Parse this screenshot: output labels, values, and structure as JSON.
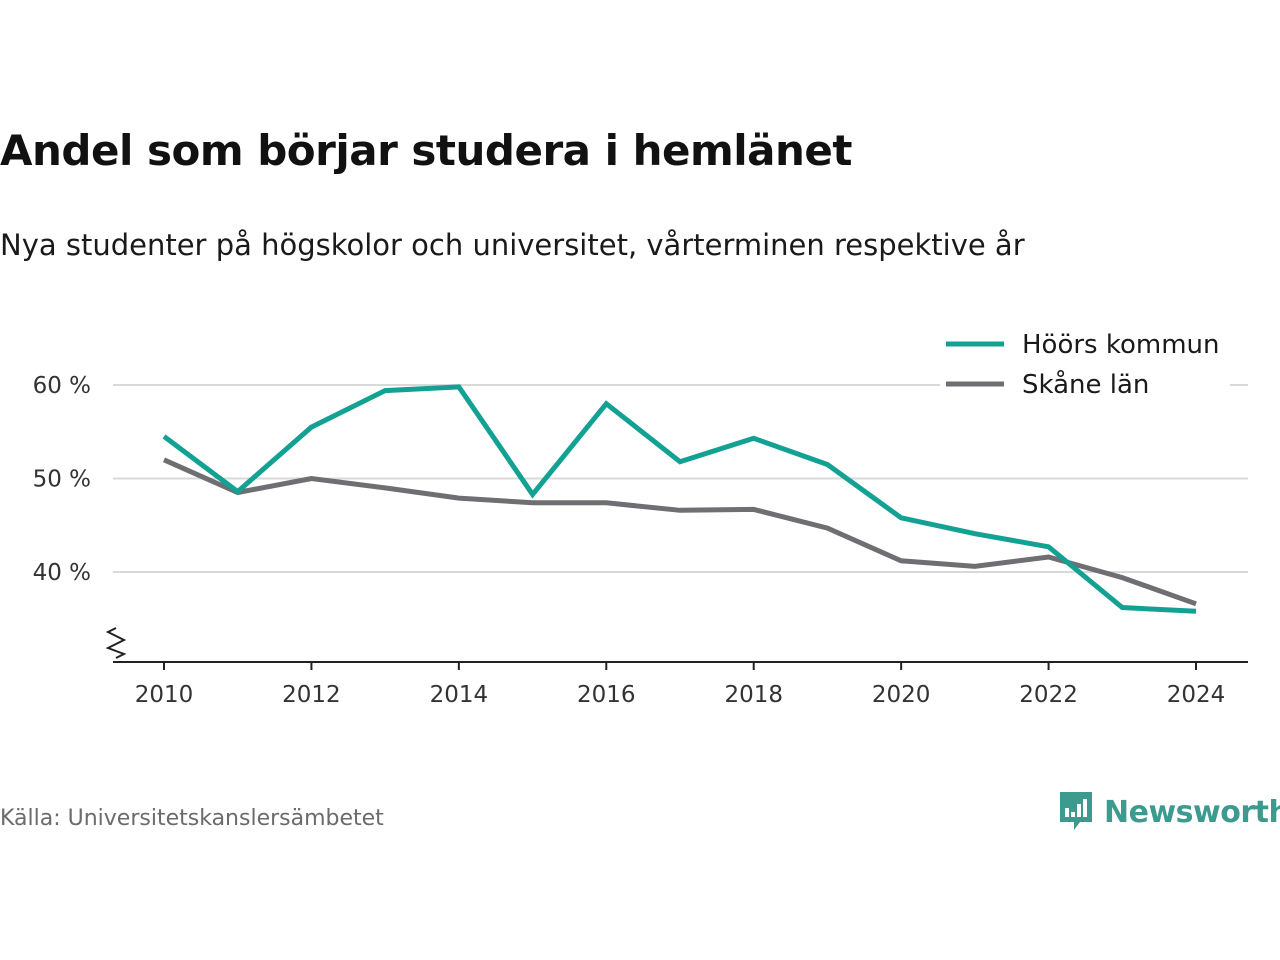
{
  "header": {
    "title": "Andel som börjar studera i hemlänet",
    "subtitle": "Nya studenter på högskolor och universitet, vårterminen respektive år"
  },
  "footer": {
    "source": "Källa: Universitetskanslersämbetet",
    "brand": "Newsworthy",
    "brand_icon": "bar-chart-speech-bubble-icon"
  },
  "colors": {
    "hoor": "#12a192",
    "skane": "#6e6e73",
    "grid": "#d9d9d9",
    "brand": "#3d9a8f"
  },
  "chart_data": {
    "type": "line",
    "title": "Andel som börjar studera i hemlänet",
    "subtitle": "Nya studenter på högskolor och universitet, vårterminen respektive år",
    "xlabel": "",
    "ylabel": "",
    "x": [
      2010,
      2011,
      2012,
      2013,
      2014,
      2015,
      2016,
      2017,
      2018,
      2019,
      2020,
      2021,
      2022,
      2023,
      2024
    ],
    "x_ticks": [
      "2010",
      "2012",
      "2014",
      "2016",
      "2018",
      "2020",
      "2022",
      "2024"
    ],
    "y_ticks": [
      "40 %",
      "50 %",
      "60 %"
    ],
    "ylim": [
      31,
      62
    ],
    "y_axis_break": true,
    "grid": true,
    "legend_position": "top-right",
    "series": [
      {
        "name": "Höörs kommun",
        "color": "#12a192",
        "values": [
          54.5,
          48.6,
          55.5,
          59.4,
          59.8,
          48.3,
          58.0,
          51.8,
          54.3,
          51.5,
          45.8,
          44.1,
          42.7,
          36.2,
          35.8
        ]
      },
      {
        "name": "Skåne län",
        "color": "#6e6e73",
        "values": [
          52.0,
          48.5,
          50.0,
          49.0,
          47.9,
          47.4,
          47.4,
          46.6,
          46.7,
          44.7,
          41.2,
          40.6,
          41.6,
          39.4,
          36.6
        ]
      }
    ]
  }
}
